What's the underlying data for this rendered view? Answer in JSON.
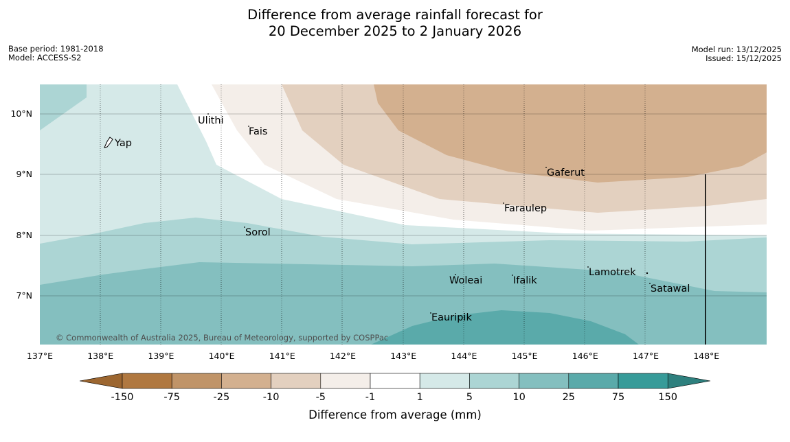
{
  "title": {
    "line1": "Difference from average rainfall forecast for",
    "line2": "20 December 2025 to 2 January 2026"
  },
  "meta_left": {
    "base_period": "Base period: 1981-2018",
    "model": "Model: ACCESS-S2"
  },
  "meta_right": {
    "model_run": "Model run: 13/12/2025",
    "issued": "Issued: 15/12/2025"
  },
  "map": {
    "longitude_labels": [
      "137°E",
      "138°E",
      "139°E",
      "140°E",
      "141°E",
      "142°E",
      "143°E",
      "144°E",
      "145°E",
      "146°E",
      "147°E",
      "148°E"
    ],
    "latitude_labels": [
      "10°N",
      "9°N",
      "8°N",
      "7°N"
    ],
    "copyright": "© Commonwealth of Australia 2025, Bureau of Meteorology, supported by COSPPac",
    "places": {
      "yap": "Yap",
      "ulithi": "Ulithi",
      "fais": "Fais",
      "gaferut": "Gaferut",
      "faraulep": "Faraulep",
      "sorol": "Sorol",
      "lamotrek": "Lamotrek",
      "woleai": "Woleai",
      "ifalik": "Ifalik",
      "satawal": "Satawal",
      "eauripik": "Eauripik"
    }
  },
  "legend": {
    "title": "Difference from average (mm)",
    "ticks": [
      "-150",
      "-75",
      "-25",
      "-10",
      "-5",
      "-1",
      "1",
      "5",
      "10",
      "25",
      "75",
      "150"
    ],
    "colors": [
      "#b07840",
      "#c09468",
      "#d3b08f",
      "#e3d0bf",
      "#f4eee9",
      "#ffffff",
      "#d5e9e8",
      "#acd5d4",
      "#84bfbf",
      "#5aaaaa",
      "#379b99"
    ],
    "under_color": "#9c6630",
    "over_color": "#2e807e"
  }
}
